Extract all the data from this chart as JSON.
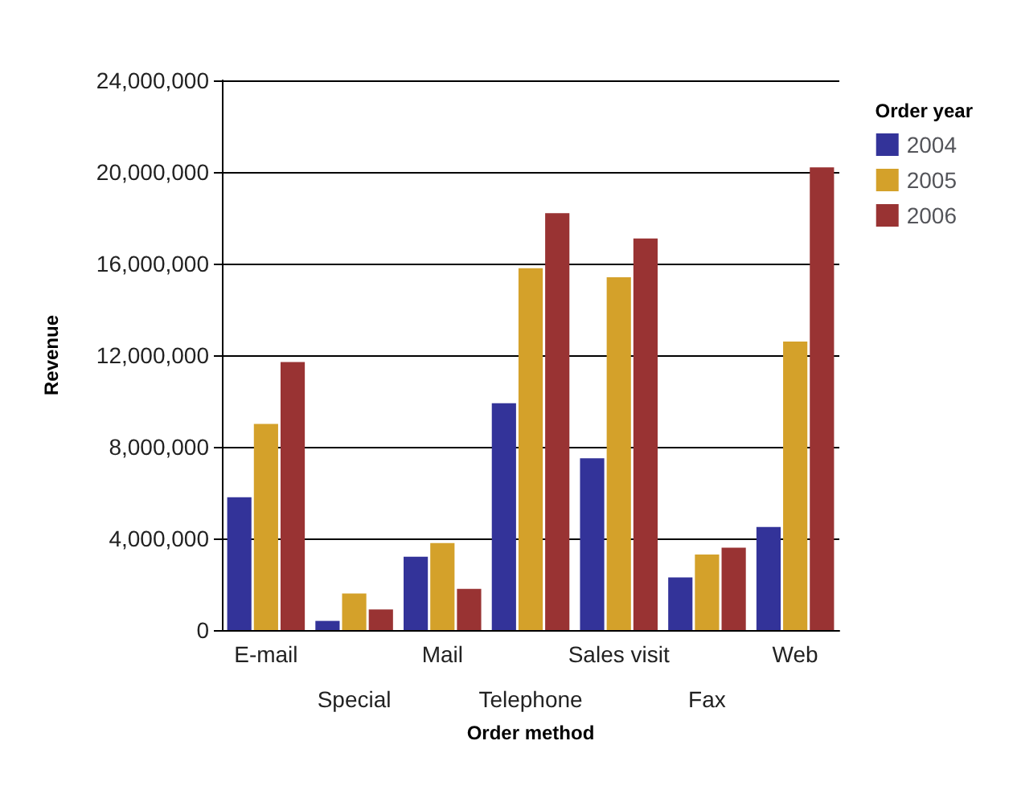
{
  "chart_data": {
    "type": "bar",
    "xlabel": "Order method",
    "ylabel": "Revenue",
    "legend_title": "Order year",
    "categories": [
      "E-mail",
      "Special",
      "Mail",
      "Telephone",
      "Sales visit",
      "Fax",
      "Web"
    ],
    "series": [
      {
        "name": "2004",
        "color": "#333399",
        "values": [
          5800000,
          400000,
          3200000,
          9900000,
          7500000,
          2300000,
          4500000
        ]
      },
      {
        "name": "2005",
        "color": "#d4a12a",
        "values": [
          9000000,
          1600000,
          3800000,
          15800000,
          15400000,
          3300000,
          12600000
        ]
      },
      {
        "name": "2006",
        "color": "#993333",
        "values": [
          11700000,
          900000,
          1800000,
          18200000,
          17100000,
          3600000,
          20200000
        ]
      }
    ],
    "ylim": [
      0,
      24000000
    ],
    "yticks": [
      0,
      {
        "value": 4000000,
        "label": "4,000,000"
      },
      {
        "value": 8000000,
        "label": "8,000,000"
      },
      {
        "value": 12000000,
        "label": "12,000,000"
      },
      {
        "value": 16000000,
        "label": "16,000,000"
      },
      {
        "value": 20000000,
        "label": "20,000,000"
      },
      {
        "value": 24000000,
        "label": "24,000,000"
      }
    ],
    "grid": "y",
    "legend": "top right"
  }
}
